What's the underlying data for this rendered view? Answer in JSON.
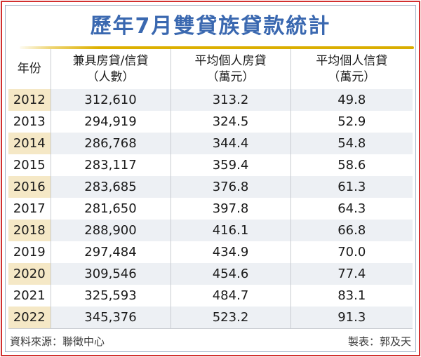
{
  "title": "歷年7月雙貸族貸款統計",
  "table": {
    "columns": [
      {
        "line1": "年份",
        "line2": ""
      },
      {
        "line1": "兼具房貸/信貸",
        "line2": "（人數）"
      },
      {
        "line1": "平均個人房貸",
        "line2": "（萬元）"
      },
      {
        "line1": "平均個人信貸",
        "line2": "（萬元）"
      }
    ],
    "rows": [
      {
        "year": "2012",
        "count": "312,610",
        "mortgage": "313.2",
        "credit": "49.8"
      },
      {
        "year": "2013",
        "count": "294,919",
        "mortgage": "324.5",
        "credit": "52.9"
      },
      {
        "year": "2014",
        "count": "286,768",
        "mortgage": "344.4",
        "credit": "54.8"
      },
      {
        "year": "2015",
        "count": "283,117",
        "mortgage": "359.4",
        "credit": "58.6"
      },
      {
        "year": "2016",
        "count": "283,685",
        "mortgage": "376.8",
        "credit": "61.3"
      },
      {
        "year": "2017",
        "count": "281,650",
        "mortgage": "397.8",
        "credit": "64.3"
      },
      {
        "year": "2018",
        "count": "288,900",
        "mortgage": "416.1",
        "credit": "66.8"
      },
      {
        "year": "2019",
        "count": "297,484",
        "mortgage": "434.9",
        "credit": "70.0"
      },
      {
        "year": "2020",
        "count": "309,546",
        "mortgage": "454.6",
        "credit": "77.4"
      },
      {
        "year": "2021",
        "count": "325,593",
        "mortgage": "484.7",
        "credit": "83.1"
      },
      {
        "year": "2022",
        "count": "345,376",
        "mortgage": "523.2",
        "credit": "91.3"
      }
    ]
  },
  "footer": {
    "source": "資料來源：聯徵中心",
    "credit": "製表：郭及天"
  },
  "colors": {
    "title_blue": "#3a68b0",
    "gold_line": "#d9ad00",
    "border_red": "#d23030",
    "inner_border": "#9fb0c6",
    "stripe_year_tan": "#f5e8c6",
    "stripe_row_gray": "#edf0f4",
    "separator_gray": "#c9ccd1"
  },
  "chart_data": {
    "type": "table",
    "title": "歷年7月雙貸族貸款統計",
    "columns": [
      "年份",
      "兼具房貸/信貸（人數）",
      "平均個人房貸（萬元）",
      "平均個人信貸（萬元）"
    ],
    "rows": [
      [
        "2012",
        312610,
        313.2,
        49.8
      ],
      [
        "2013",
        294919,
        324.5,
        52.9
      ],
      [
        "2014",
        286768,
        344.4,
        54.8
      ],
      [
        "2015",
        283117,
        359.4,
        58.6
      ],
      [
        "2016",
        283685,
        376.8,
        61.3
      ],
      [
        "2017",
        281650,
        397.8,
        64.3
      ],
      [
        "2018",
        288900,
        416.1,
        66.8
      ],
      [
        "2019",
        297484,
        434.9,
        70.0
      ],
      [
        "2020",
        309546,
        454.6,
        77.4
      ],
      [
        "2021",
        325593,
        484.7,
        83.1
      ],
      [
        "2022",
        345376,
        523.2,
        91.3
      ]
    ],
    "source": "資料來源：聯徵中心",
    "credit": "製表：郭及天"
  }
}
